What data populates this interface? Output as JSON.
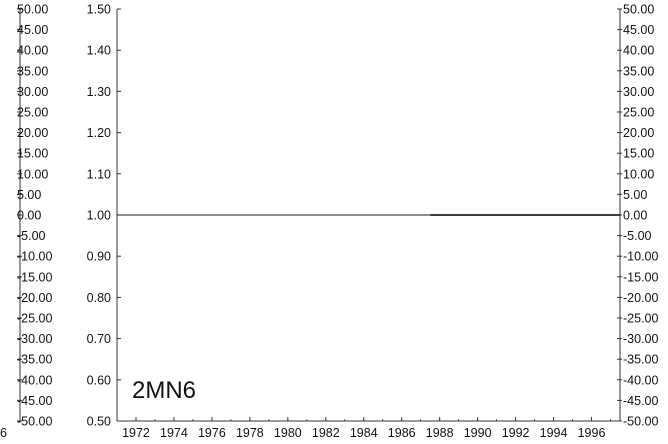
{
  "chart_data": {
    "type": "line",
    "station_label": "2MN6",
    "edge_glyph": "6",
    "x": {
      "range": [
        1971,
        1997.5
      ],
      "tick_values": [
        1972,
        1974,
        1976,
        1978,
        1980,
        1982,
        1984,
        1986,
        1988,
        1990,
        1992,
        1994,
        1996
      ],
      "tick_labels": [
        "1972",
        "1974",
        "1976",
        "1978",
        "1980",
        "1982",
        "1984",
        "1986",
        "1988",
        "1990",
        "1992",
        "1994",
        "1996"
      ]
    },
    "y_left_outer": {
      "range": [
        -50,
        50
      ],
      "tick_labels": [
        "50.00",
        "45.00",
        "40.00",
        "35.00",
        "30.00",
        "25.00",
        "20.00",
        "15.00",
        "10.00",
        "5.00",
        "0.00",
        "-5.00",
        "-10.00",
        "-15.00",
        "-20.00",
        "-25.00",
        "-30.00",
        "-35.00",
        "-40.00",
        "-45.00",
        "-50.00"
      ]
    },
    "y_left_inner": {
      "range": [
        0.5,
        1.5
      ],
      "tick_values": [
        1.5,
        1.4,
        1.3,
        1.2,
        1.1,
        1.0,
        0.9,
        0.8,
        0.7,
        0.6,
        0.5
      ],
      "tick_labels": [
        "1.50",
        "1.40",
        "1.30",
        "1.20",
        "1.10",
        "1.00",
        "0.90",
        "0.80",
        "0.70",
        "0.60",
        "0.50"
      ]
    },
    "y_right": {
      "range": [
        -50,
        50
      ],
      "tick_labels": [
        "50.00",
        "45.00",
        "40.00",
        "35.00",
        "30.00",
        "25.00",
        "20.00",
        "15.00",
        "10.00",
        "5.00",
        "0.00",
        "-5.00",
        "-10.00",
        "-15.00",
        "-20.00",
        "-25.00",
        "-30.00",
        "-35.00",
        "-40.00",
        "-45.00",
        "-50.00"
      ]
    },
    "series": [
      {
        "x": [
          1971,
          1984,
          1986,
          1988,
          1990,
          1992,
          1994,
          1996,
          1997.5
        ],
        "y": [
          1.0,
          1.0,
          1.0,
          1.0,
          1.0,
          1.0,
          1.0,
          1.0,
          1.0
        ]
      }
    ],
    "grid": false,
    "colors": {
      "line": "#222222",
      "axis": "#333333",
      "text": "#111111",
      "background": "#ffffff"
    }
  }
}
